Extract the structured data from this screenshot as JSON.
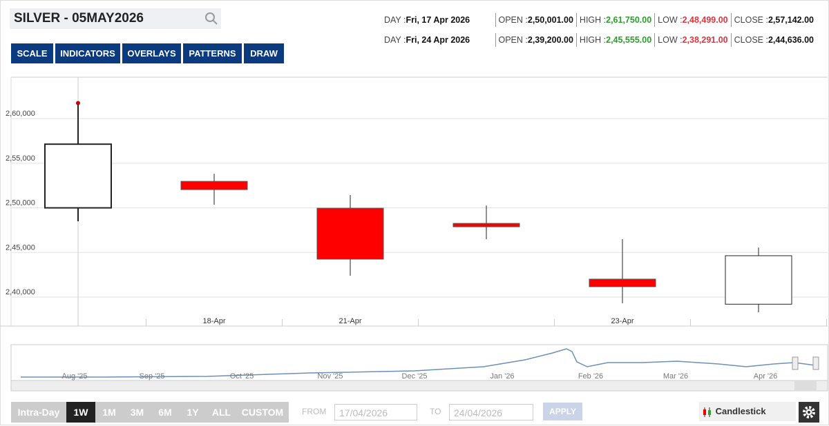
{
  "header": {
    "symbol": "SILVER - 05MAY2026",
    "toolbar": [
      "SCALE",
      "INDICATORS",
      "OVERLAYS",
      "PATTERNS",
      "DRAW"
    ],
    "labels": {
      "day": "DAY : ",
      "open": "OPEN : ",
      "high": "HIGH : ",
      "low": "LOW : ",
      "close": "CLOSE : "
    },
    "info_rows": [
      {
        "day": "Fri, 17 Apr 2026",
        "open": "2,50,001.00",
        "high": "2,61,750.00",
        "low": "2,48,499.00",
        "close": "2,57,142.00"
      },
      {
        "day": "Fri, 24 Apr 2026",
        "open": "2,39,200.00",
        "high": "2,45,555.00",
        "low": "2,38,291.00",
        "close": "2,44,636.00"
      }
    ]
  },
  "chart_data": {
    "type": "candlestick",
    "categories": [
      null,
      "18-Apr",
      "21-Apr",
      null,
      "23-Apr",
      null
    ],
    "open": [
      250001,
      252970,
      249960,
      248260,
      242010,
      239200
    ],
    "high": [
      261750,
      253820,
      251430,
      250270,
      246490,
      245555
    ],
    "low": [
      248499,
      250350,
      242390,
      246490,
      239300,
      238291
    ],
    "close": [
      257142,
      252050,
      244250,
      247880,
      241160,
      244636
    ],
    "up_color": "#ffffff",
    "down_color": "#ff0000",
    "ylim": [
      236750,
      264650
    ],
    "yticks": [
      {
        "value": 240000,
        "label": "2,40,000"
      },
      {
        "value": 245000,
        "label": "2,45,000"
      },
      {
        "value": 250000,
        "label": "2,50,000"
      },
      {
        "value": 255000,
        "label": "2,55,000"
      },
      {
        "value": 260000,
        "label": "2,60,000"
      }
    ],
    "grid": true
  },
  "navigator": {
    "months": [
      "Aug '25",
      "Sep '25",
      "Oct '25",
      "Nov '25",
      "Dec '25",
      "Jan '26",
      "Feb '26",
      "Mar '26",
      "Apr '26"
    ]
  },
  "footer": {
    "ranges": [
      "Intra-Day",
      "1W",
      "1M",
      "3M",
      "6M",
      "1Y",
      "ALL",
      "CUSTOM"
    ],
    "active_range": 1,
    "from_label": "FROM",
    "from": "17/04/2026",
    "to_label": "TO",
    "to": "24/04/2026",
    "apply": "APPLY",
    "chart_type": "Candlestick"
  }
}
